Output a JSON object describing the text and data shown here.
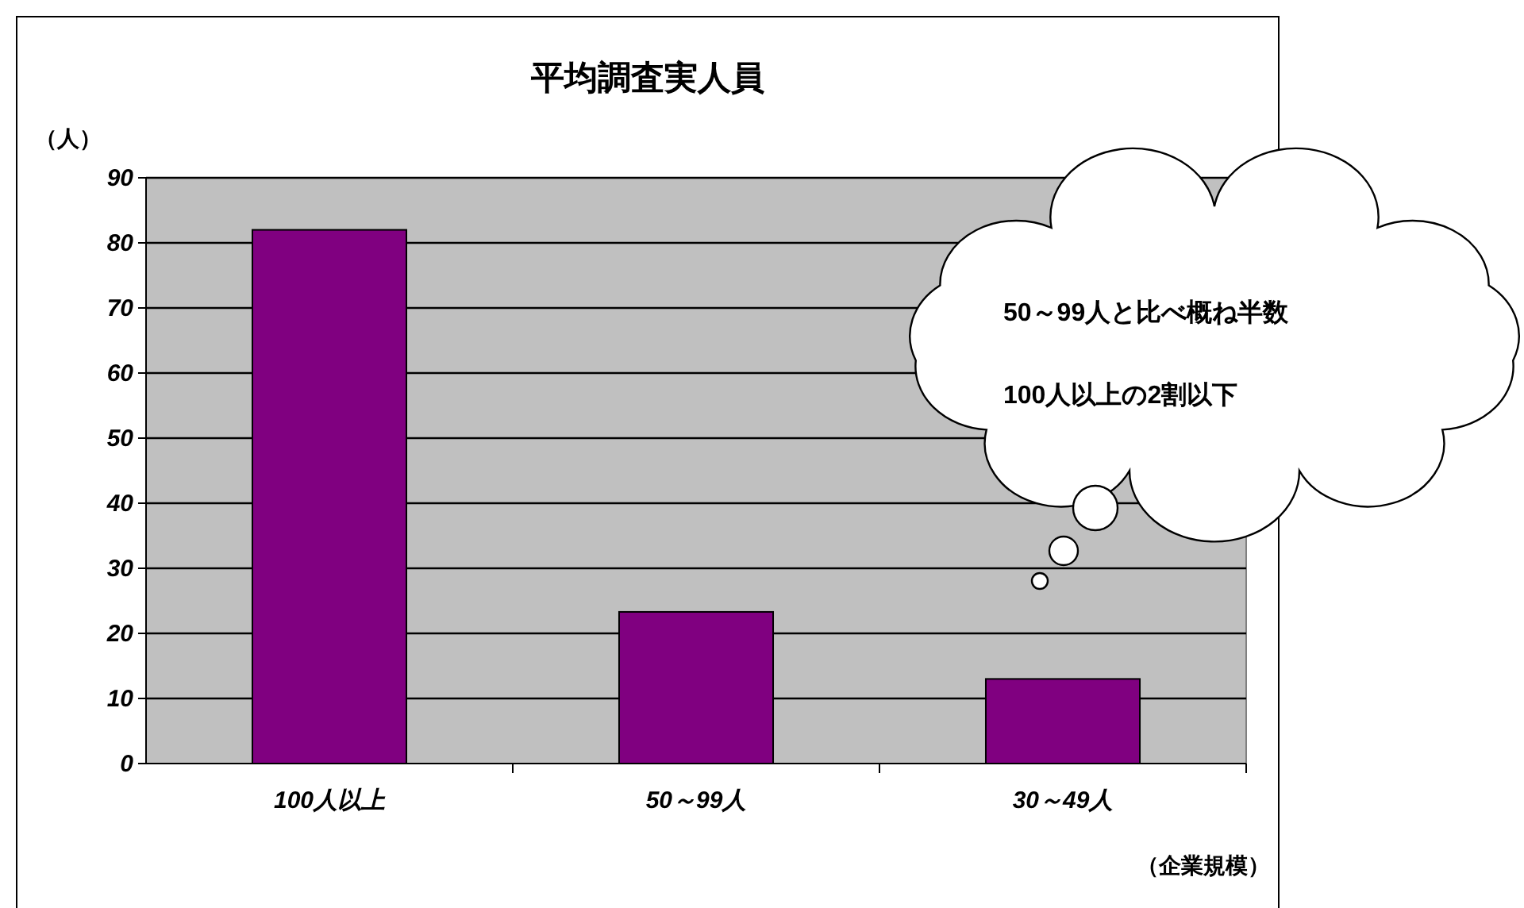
{
  "chart_data": {
    "type": "bar",
    "title": "平均調査実人員",
    "ylabel": "（人）",
    "xlabel": "（企業規模）",
    "categories": [
      "100人以上",
      "50～99人",
      "30～49人"
    ],
    "values": [
      82,
      23.3,
      13
    ],
    "color": "#800080",
    "ylim": [
      0,
      90
    ],
    "yticks": [
      0,
      10,
      20,
      30,
      40,
      50,
      60,
      70,
      80,
      90
    ],
    "grid": "y",
    "annotations": [
      "50～99人と比べ概ね半数",
      "100人以上の2割以下"
    ]
  }
}
